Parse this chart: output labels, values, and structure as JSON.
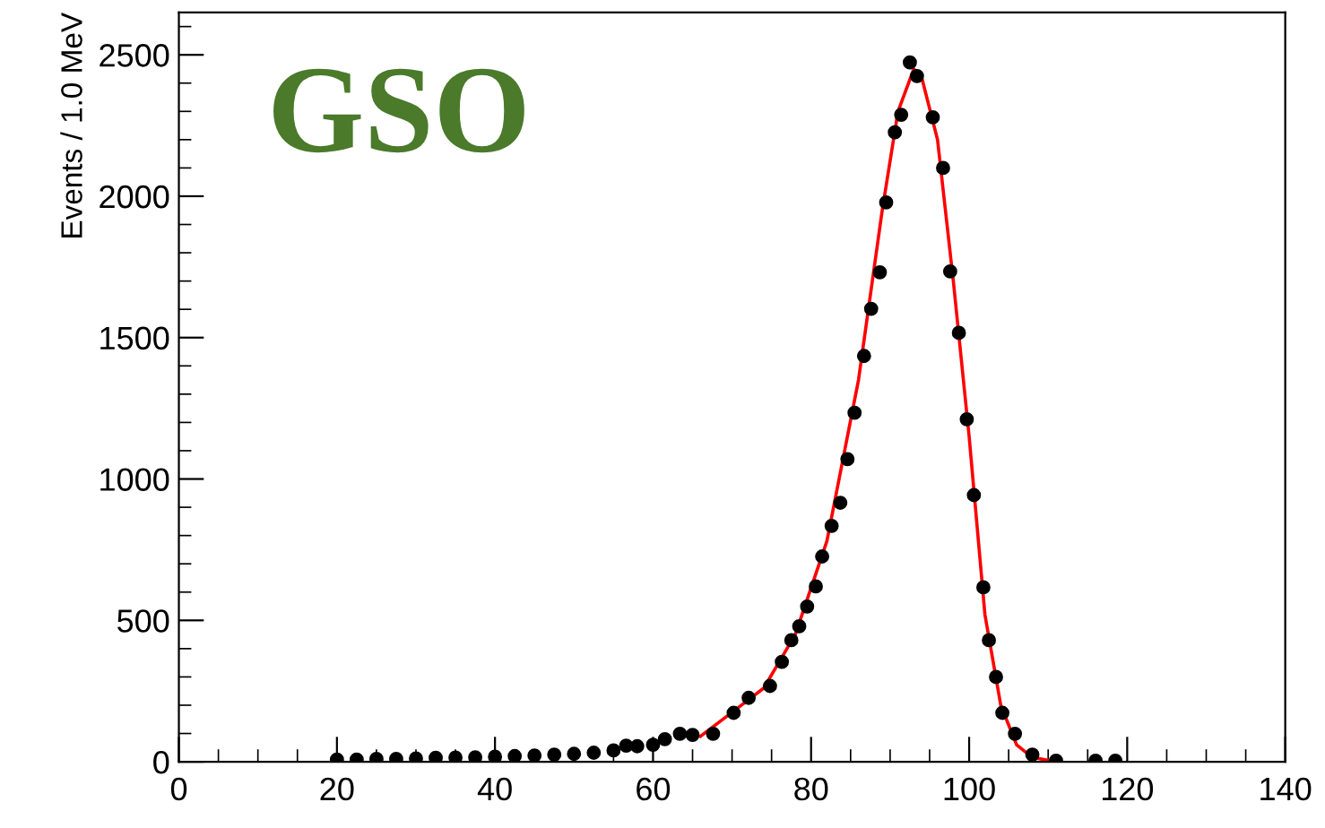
{
  "chart_data": {
    "type": "scatter",
    "ylabel": "Events / 1.0 MeV",
    "annotations": [
      "GSO"
    ],
    "xlim": [
      0,
      140
    ],
    "xticks": [
      0,
      20,
      40,
      60,
      80,
      100,
      120,
      140
    ],
    "ylim": [
      0,
      2650
    ],
    "yticks": [
      0,
      500,
      1000,
      1500,
      2000,
      2500
    ],
    "grid": false,
    "marker": "circle",
    "series": [
      {
        "color": "#000000",
        "x": [
          20,
          22.5,
          25,
          27.5,
          30,
          32.5,
          35,
          37.5,
          40,
          42.5,
          45,
          47.5,
          50,
          52.5,
          55,
          56.6,
          58,
          60,
          61.5,
          63.4,
          65,
          67.6,
          70.2,
          72.1,
          74.8,
          76.3,
          77.5,
          78.5,
          79.5,
          80.6,
          81.4,
          82.6,
          83.7,
          84.6,
          85.5,
          86.7,
          87.6,
          88.7,
          89.5,
          90.6,
          91.4,
          92.5,
          93.4,
          95.4,
          96.7,
          97.6,
          98.7,
          99.7,
          100.6,
          101.8,
          102.5,
          103.4,
          104.2,
          105.8,
          108.0,
          111,
          116,
          118.5
        ],
        "values": [
          8,
          8,
          10,
          10,
          12,
          14,
          15,
          16,
          18,
          20,
          22,
          25,
          28,
          32,
          40,
          57,
          55,
          60,
          80,
          99,
          95,
          99,
          173,
          226,
          268,
          353,
          430,
          479,
          549,
          620,
          726,
          834,
          916,
          1070,
          1234,
          1435,
          1602,
          1731,
          1978,
          2226,
          2288,
          2473,
          2425,
          2279,
          2100,
          1734,
          1517,
          1211,
          943,
          617,
          430,
          300,
          173,
          99,
          25,
          4,
          4,
          4
        ]
      },
      {
        "type": "line",
        "color": "#ff0000",
        "marker": "none",
        "x": [
          66,
          70,
          74,
          78,
          82,
          86,
          89,
          91,
          93,
          94,
          96,
          98,
          100,
          102,
          104,
          106,
          108,
          111
        ],
        "values": [
          90,
          175,
          260,
          450,
          780,
          1350,
          1950,
          2300,
          2450,
          2420,
          2200,
          1700,
          1150,
          520,
          200,
          60,
          15,
          0
        ]
      }
    ]
  }
}
